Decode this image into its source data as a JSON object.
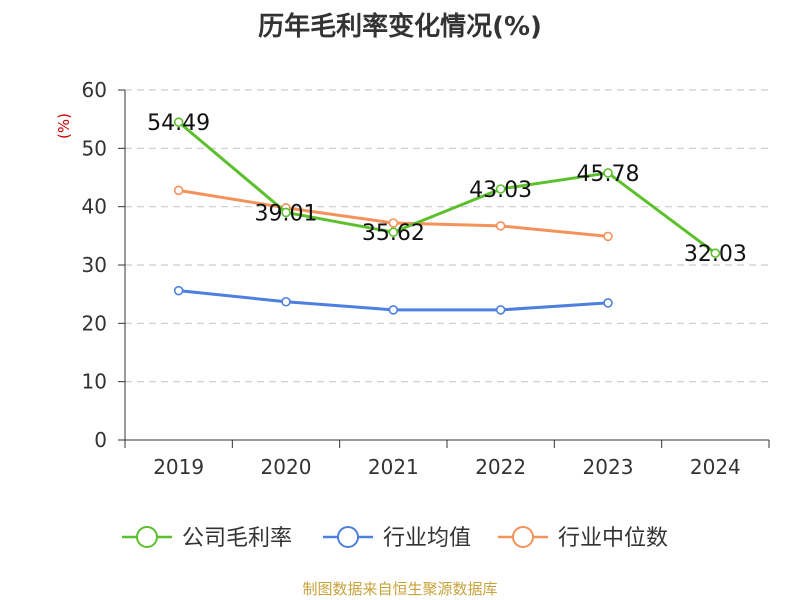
{
  "title": "历年毛利率变化情况(%)",
  "source": "制图数据来自恒生聚源数据库",
  "chart_data": {
    "type": "line",
    "title": "历年毛利率变化情况(%)",
    "ylabel": "(%)",
    "xlabel": "",
    "ylim": [
      0,
      60
    ],
    "yticks": [
      0,
      10,
      20,
      30,
      40,
      50,
      60
    ],
    "categories": [
      "2019",
      "2020",
      "2021",
      "2022",
      "2023",
      "2024"
    ],
    "grid": true,
    "legend_position": "bottom",
    "series": [
      {
        "name": "公司毛利率",
        "color": "#5cc02c",
        "values": [
          54.49,
          39.01,
          35.62,
          43.03,
          45.78,
          32.03
        ],
        "labels": [
          "54.49",
          "39.01",
          "35.62",
          "43.03",
          "45.78",
          "32.03"
        ]
      },
      {
        "name": "行业均值",
        "color": "#4d80de",
        "values": [
          25.6,
          23.7,
          22.3,
          22.3,
          23.5,
          null
        ]
      },
      {
        "name": "行业中位数",
        "color": "#f5925a",
        "values": [
          42.8,
          39.8,
          37.2,
          36.7,
          34.9,
          null
        ]
      }
    ]
  }
}
